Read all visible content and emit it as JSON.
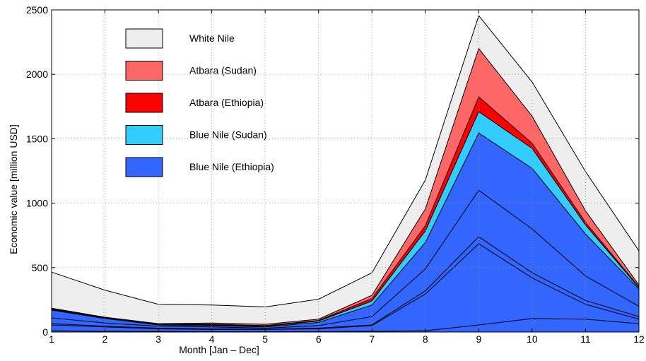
{
  "chart_data": {
    "type": "area",
    "stacked": true,
    "xlabel": "Month [Jan – Dec]",
    "ylabel": "Economic value [million USD]",
    "x": [
      1,
      2,
      3,
      4,
      5,
      6,
      7,
      8,
      9,
      10,
      11,
      12
    ],
    "xlim": [
      1,
      12
    ],
    "ylim": [
      0,
      2500
    ],
    "xticks": [
      "1",
      "2",
      "3",
      "4",
      "5",
      "6",
      "7",
      "8",
      "9",
      "10",
      "11",
      "12"
    ],
    "yticks": [
      "0",
      "500",
      "1000",
      "1500",
      "2000",
      "2500"
    ],
    "grid": true,
    "legend_position": "top-left",
    "series": [
      {
        "name": "Blue Nile (Ethiopia)",
        "color": "#3366ff",
        "values": [
          170,
          105,
          55,
          50,
          40,
          75,
          210,
          695,
          1545,
          1270,
          760,
          335
        ]
      },
      {
        "name": "Blue Nile (Sudan)",
        "color": "#33ccff",
        "values": [
          5,
          5,
          5,
          5,
          5,
          10,
          30,
          90,
          165,
          155,
          70,
          10
        ]
      },
      {
        "name": "Atbara (Ethiopia)",
        "color": "#ff0000",
        "values": [
          5,
          3,
          3,
          5,
          5,
          5,
          20,
          40,
          115,
          40,
          20,
          5
        ]
      },
      {
        "name": "Atbara (Sudan)",
        "color": "#ff6666",
        "values": [
          5,
          2,
          2,
          10,
          10,
          10,
          25,
          130,
          375,
          210,
          90,
          15
        ]
      },
      {
        "name": "White Nile",
        "color": "#eeeeee",
        "values": [
          280,
          210,
          150,
          140,
          135,
          155,
          175,
          225,
          255,
          265,
          305,
          265
        ]
      }
    ],
    "subdivision_lines": [
      [
        10,
        5,
        5,
        3,
        3,
        3,
        5,
        10,
        55,
        105,
        100,
        65
      ],
      [
        55,
        40,
        25,
        20,
        20,
        25,
        50,
        295,
        685,
        420,
        215,
        100
      ],
      [
        65,
        45,
        30,
        25,
        22,
        30,
        55,
        320,
        740,
        460,
        245,
        120
      ],
      [
        110,
        70,
        45,
        40,
        30,
        50,
        120,
        490,
        1100,
        800,
        435,
        200
      ]
    ]
  }
}
